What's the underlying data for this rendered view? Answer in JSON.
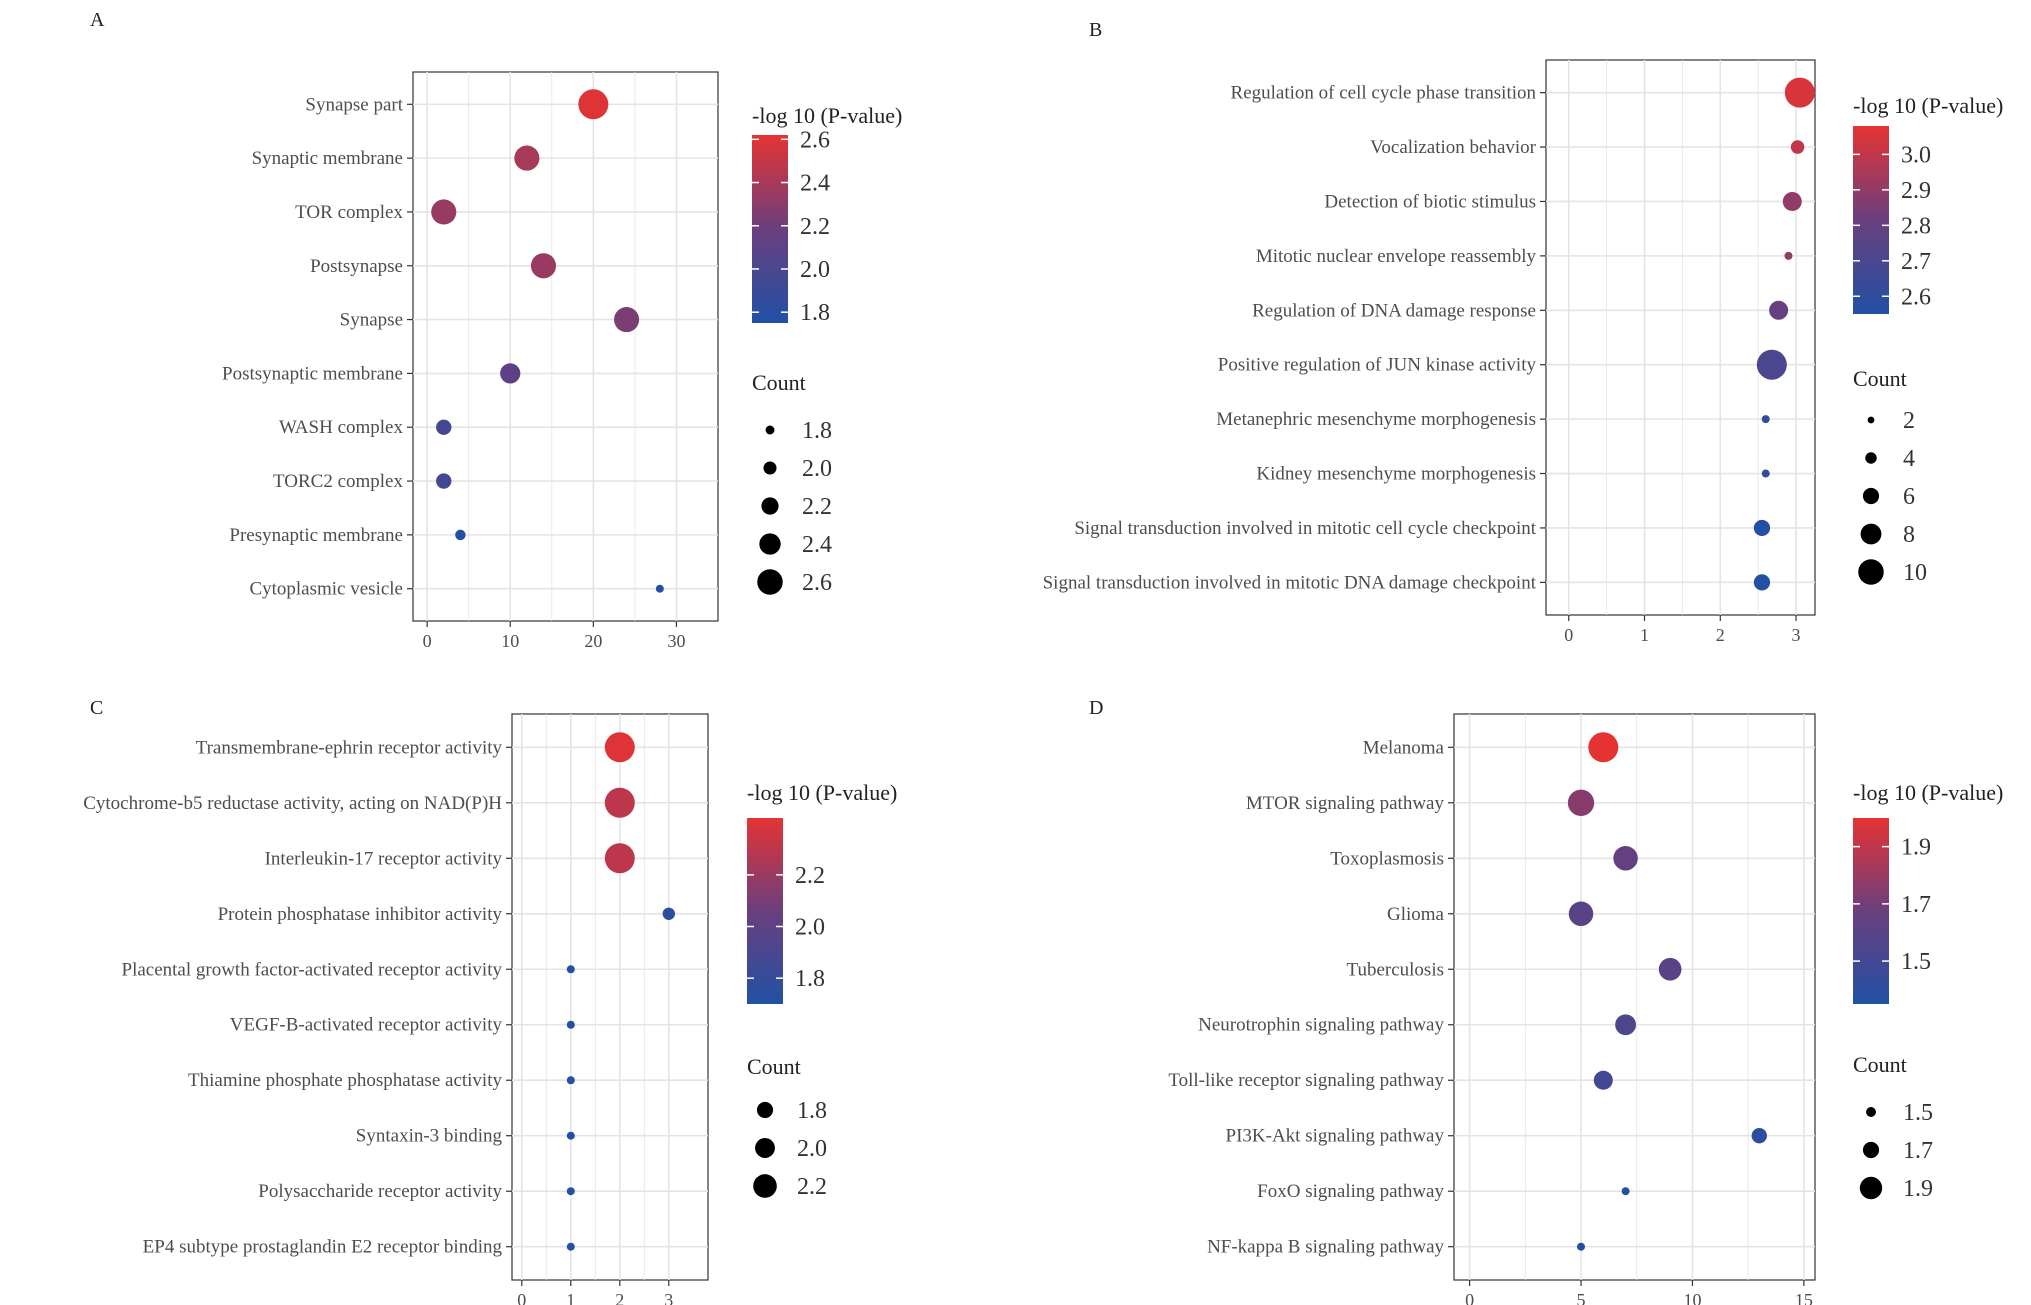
{
  "colors": {
    "low": "#2250a4",
    "mid": "#6a3f7e",
    "high": "#e53333",
    "grid": "#e4e4e4",
    "frame": "#333333",
    "text": "#4d4d4d"
  },
  "chart_data": [
    {
      "panel": "A",
      "type": "scatter",
      "categories": [
        "Synapse part",
        "Synaptic membrane",
        "TOR complex",
        "Postsynapse",
        "Synapse",
        "Postsynaptic membrane",
        "WASH complex",
        "TORC2 complex",
        "Presynaptic membrane",
        "Cytoplasmic vesicle"
      ],
      "x": [
        20,
        12,
        2,
        14,
        24,
        10,
        2,
        2,
        4,
        28
      ],
      "color_values": [
        2.6,
        2.4,
        2.35,
        2.35,
        2.25,
        2.1,
        1.95,
        1.95,
        1.75,
        1.7
      ],
      "size_values": [
        2.6,
        2.4,
        2.4,
        2.4,
        2.4,
        2.2,
        2.0,
        2.0,
        1.8,
        1.7
      ],
      "xlim": [
        -1.7,
        35
      ],
      "xticks": [
        0,
        10,
        20,
        30
      ],
      "color_title": "-log 10 (P-value)",
      "color_ticks": [
        2.6,
        2.4,
        2.2,
        2.0,
        1.8
      ],
      "color_range": [
        1.75,
        2.62
      ],
      "size_title": "Count",
      "size_ticks": [
        1.8,
        2.0,
        2.2,
        2.4,
        2.6
      ],
      "size_range": [
        1.7,
        2.6
      ],
      "radius_range": [
        4,
        15
      ]
    },
    {
      "panel": "B",
      "type": "scatter",
      "categories": [
        "Regulation of cell cycle phase transition",
        "Vocalization behavior",
        "Detection of biotic stimulus",
        "Mitotic nuclear envelope reassembly",
        "Regulation of DNA damage response",
        "Positive regulation of JUN kinase activity",
        "Metanephric mesenchyme morphogenesis",
        "Kidney mesenchyme morphogenesis",
        "Signal transduction involved in mitotic cell cycle checkpoint",
        "Signal transduction involved in mitotic DNA damage checkpoint"
      ],
      "x": [
        3.05,
        3.02,
        2.95,
        2.9,
        2.77,
        2.68,
        2.6,
        2.6,
        2.55,
        2.55
      ],
      "color_values": [
        3.05,
        3.0,
        2.9,
        2.9,
        2.8,
        2.7,
        2.62,
        2.62,
        2.55,
        2.55
      ],
      "size_values": [
        10,
        4,
        6,
        2,
        6,
        10,
        2,
        2,
        5,
        5
      ],
      "xlim": [
        -0.3,
        3.25
      ],
      "xticks": [
        0,
        1,
        2,
        3
      ],
      "color_title": "-log 10 (P-value)",
      "color_ticks": [
        3.0,
        2.9,
        2.8,
        2.7,
        2.6
      ],
      "color_range": [
        2.55,
        3.08
      ],
      "size_title": "Count",
      "size_ticks": [
        2,
        4,
        6,
        8,
        10
      ],
      "size_range": [
        2,
        10
      ],
      "radius_range": [
        4,
        15
      ]
    },
    {
      "panel": "C",
      "type": "scatter",
      "categories": [
        "Transmembrane-ephrin receptor activity",
        "Cytochrome-b5 reductase activity, acting on NAD(P)H",
        "Interleukin-17 receptor activity",
        "Protein phosphatase inhibitor activity",
        "Placental growth factor-activated receptor activity",
        "VEGF-B-activated receptor activity",
        "Thiamine phosphate phosphatase activity",
        "Syntaxin-3 binding",
        "Polysaccharide receptor activity",
        "EP4 subtype prostaglandin E2 receptor binding"
      ],
      "x": [
        2,
        2,
        2,
        3,
        1,
        1,
        1,
        1,
        1,
        1
      ],
      "color_values": [
        2.4,
        2.3,
        2.3,
        1.75,
        1.7,
        1.7,
        1.7,
        1.7,
        1.7,
        1.7
      ],
      "size_values": [
        2.3,
        2.3,
        2.3,
        1.5,
        1.3,
        1.3,
        1.3,
        1.3,
        1.3,
        1.3
      ],
      "xlim": [
        -0.2,
        3.8
      ],
      "xticks": [
        0,
        1,
        2,
        3
      ],
      "color_title": "-log 10 (P-value)",
      "color_ticks": [
        2.2,
        2.0,
        1.8
      ],
      "color_range": [
        1.7,
        2.42
      ],
      "size_title": "Count",
      "size_ticks": [
        1.8,
        2.0,
        2.2
      ],
      "size_range": [
        1.3,
        2.3
      ],
      "radius_range": [
        4,
        15
      ]
    },
    {
      "panel": "D",
      "type": "scatter",
      "categories": [
        "Melanoma",
        "MTOR signaling pathway",
        "Toxoplasmosis",
        "Glioma",
        "Tuberculosis",
        "Neurotrophin signaling pathway",
        "Toll-like receptor signaling pathway",
        "PI3K-Akt signaling pathway",
        "FoxO signaling pathway",
        "NF-kappa B signaling pathway"
      ],
      "x": [
        6,
        5,
        7,
        5,
        9,
        7,
        6,
        13,
        7,
        5
      ],
      "color_values": [
        2.0,
        1.75,
        1.65,
        1.6,
        1.6,
        1.55,
        1.5,
        1.4,
        1.35,
        1.35
      ],
      "size_values": [
        2.0,
        1.9,
        1.85,
        1.85,
        1.8,
        1.75,
        1.7,
        1.6,
        1.4,
        1.4
      ],
      "xlim": [
        -0.7,
        15.5
      ],
      "xticks": [
        0,
        5,
        10,
        15
      ],
      "color_title": "-log 10 (P-value)",
      "color_ticks": [
        1.9,
        1.7,
        1.5
      ],
      "color_range": [
        1.35,
        2.0
      ],
      "size_title": "Count",
      "size_ticks": [
        1.5,
        1.7,
        1.9
      ],
      "size_range": [
        1.4,
        2.0
      ],
      "radius_range": [
        4,
        15
      ]
    }
  ]
}
